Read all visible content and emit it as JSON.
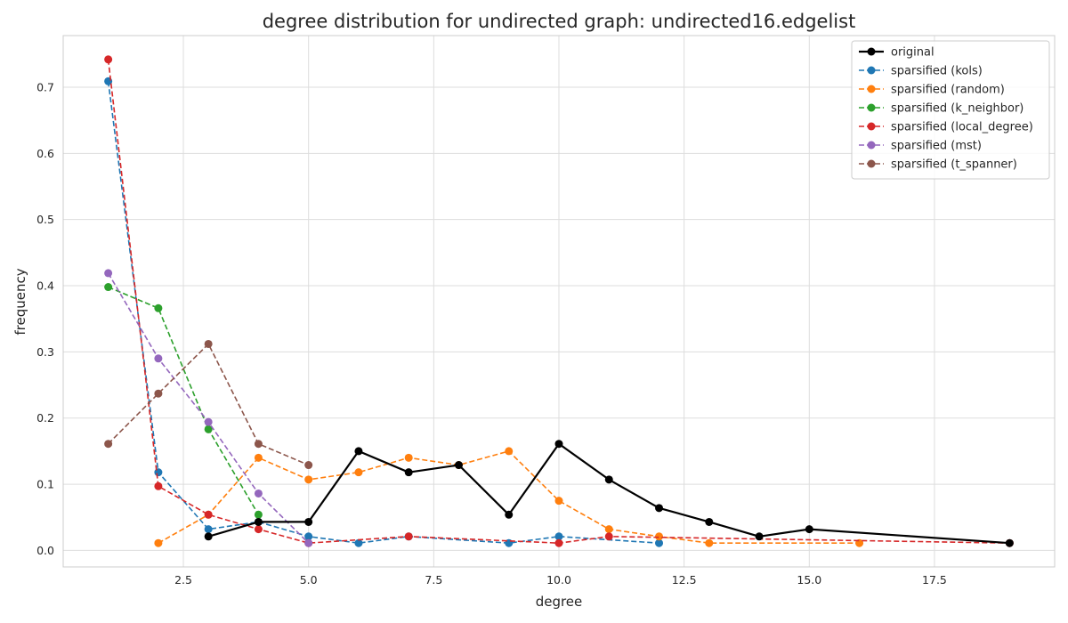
{
  "chart_data": {
    "type": "line",
    "title": "degree distribution for undirected graph: undirected16.edgelist",
    "xlabel": "degree",
    "ylabel": "frequency",
    "xlim": [
      0.1,
      19.9
    ],
    "ylim": [
      -0.025,
      0.778
    ],
    "xticks": [
      2.5,
      5.0,
      7.5,
      10.0,
      12.5,
      15.0,
      17.5
    ],
    "xtick_labels": [
      "2.5",
      "5.0",
      "7.5",
      "10.0",
      "12.5",
      "15.0",
      "17.5"
    ],
    "yticks": [
      0.0,
      0.1,
      0.2,
      0.3,
      0.4,
      0.5,
      0.6,
      0.7
    ],
    "ytick_labels": [
      "0.0",
      "0.1",
      "0.2",
      "0.3",
      "0.4",
      "0.5",
      "0.6",
      "0.7"
    ],
    "grid": true,
    "legend_position": "top-right",
    "series": [
      {
        "name": "original",
        "color": "#000000",
        "linestyle": "solid",
        "x": [
          3,
          4,
          5,
          6,
          7,
          8,
          9,
          10,
          11,
          12,
          13,
          14,
          15,
          19
        ],
        "y": [
          0.021,
          0.043,
          0.043,
          0.15,
          0.118,
          0.129,
          0.054,
          0.161,
          0.107,
          0.064,
          0.043,
          0.021,
          0.032,
          0.011
        ]
      },
      {
        "name": "sparsified (kols)",
        "color": "#1f77b4",
        "linestyle": "dashed",
        "x": [
          1,
          2,
          3,
          4,
          5,
          6,
          7,
          9,
          10,
          12
        ],
        "y": [
          0.709,
          0.118,
          0.032,
          0.043,
          0.021,
          0.011,
          0.021,
          0.011,
          0.021,
          0.011
        ]
      },
      {
        "name": "sparsified (random)",
        "color": "#ff7f0e",
        "linestyle": "dashed",
        "x": [
          2,
          3,
          4,
          5,
          6,
          7,
          8,
          9,
          10,
          11,
          12,
          13,
          16
        ],
        "y": [
          0.011,
          0.054,
          0.14,
          0.107,
          0.118,
          0.14,
          0.129,
          0.15,
          0.075,
          0.032,
          0.021,
          0.011,
          0.011
        ]
      },
      {
        "name": "sparsified (k_neighbor)",
        "color": "#2ca02c",
        "linestyle": "dashed",
        "x": [
          1,
          2,
          3,
          4
        ],
        "y": [
          0.398,
          0.366,
          0.183,
          0.054
        ]
      },
      {
        "name": "sparsified (local_degree)",
        "color": "#d62728",
        "linestyle": "dashed",
        "x": [
          1,
          2,
          3,
          4,
          5,
          7,
          10,
          11,
          19
        ],
        "y": [
          0.742,
          0.097,
          0.054,
          0.032,
          0.011,
          0.021,
          0.011,
          0.021,
          0.011
        ]
      },
      {
        "name": "sparsified (mst)",
        "color": "#9467bd",
        "linestyle": "dashed",
        "x": [
          1,
          2,
          3,
          4,
          5
        ],
        "y": [
          0.419,
          0.29,
          0.194,
          0.086,
          0.011
        ]
      },
      {
        "name": "sparsified (t_spanner)",
        "color": "#8c564b",
        "linestyle": "dashed",
        "x": [
          1,
          2,
          3,
          4,
          5
        ],
        "y": [
          0.161,
          0.237,
          0.312,
          0.161,
          0.129
        ]
      }
    ]
  }
}
